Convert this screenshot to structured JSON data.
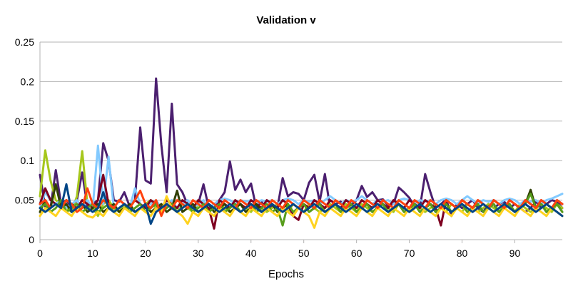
{
  "chart_data": {
    "type": "line",
    "title": "Validation v",
    "xlabel": "Epochs",
    "ylabel": "",
    "xlim": [
      0,
      99
    ],
    "ylim": [
      0,
      0.25
    ],
    "xticks": [
      "0",
      "10",
      "20",
      "30",
      "40",
      "50",
      "60",
      "70",
      "80",
      "90"
    ],
    "yticks": [
      "0",
      "0.05",
      "0.1",
      "0.15",
      "0.2",
      "0.25"
    ],
    "grid": true,
    "legend": "none",
    "series": [
      {
        "color": "#4b1f6f",
        "values": [
          0.082,
          0.042,
          0.04,
          0.088,
          0.045,
          0.05,
          0.04,
          0.05,
          0.085,
          0.042,
          0.045,
          0.05,
          0.122,
          0.1,
          0.05,
          0.048,
          0.06,
          0.042,
          0.05,
          0.142,
          0.075,
          0.071,
          0.204,
          0.12,
          0.06,
          0.172,
          0.07,
          0.06,
          0.044,
          0.04,
          0.045,
          0.07,
          0.04,
          0.04,
          0.05,
          0.06,
          0.099,
          0.063,
          0.076,
          0.06,
          0.071,
          0.04,
          0.048,
          0.037,
          0.042,
          0.04,
          0.078,
          0.055,
          0.06,
          0.058,
          0.05,
          0.072,
          0.082,
          0.048,
          0.083,
          0.04,
          0.045,
          0.048,
          0.04,
          0.044,
          0.05,
          0.068,
          0.054,
          0.06,
          0.05,
          0.051,
          0.043,
          0.045,
          0.066,
          0.06,
          0.053,
          0.042,
          0.04,
          0.083,
          0.06,
          0.04,
          0.045,
          0.051,
          0.03,
          0.045,
          0.04,
          0.045,
          0.05,
          0.04,
          0.035,
          0.045,
          0.04,
          0.045,
          0.048,
          0.04,
          0.045,
          0.04,
          0.035,
          0.04,
          0.048,
          0.04,
          0.045,
          0.05,
          0.048,
          0.04
        ]
      },
      {
        "color": "#a6c71c",
        "values": [
          0.055,
          0.113,
          0.075,
          0.05,
          0.045,
          0.04,
          0.035,
          0.055,
          0.112,
          0.045,
          0.04,
          0.03,
          0.045,
          0.05,
          0.04,
          0.035,
          0.045,
          0.04,
          0.035,
          0.04,
          0.045,
          0.05,
          0.04,
          0.035,
          0.045,
          0.04,
          0.035,
          0.045,
          0.04,
          0.035,
          0.045,
          0.04,
          0.035,
          0.04,
          0.045,
          0.04,
          0.035,
          0.04,
          0.045,
          0.04,
          0.035,
          0.045,
          0.04,
          0.035,
          0.04,
          0.045,
          0.04,
          0.035,
          0.045,
          0.04,
          0.035,
          0.045,
          0.04,
          0.035,
          0.04,
          0.045,
          0.04,
          0.035,
          0.045,
          0.04,
          0.035,
          0.045,
          0.04,
          0.035,
          0.04,
          0.045,
          0.04,
          0.035,
          0.045,
          0.04,
          0.035,
          0.045,
          0.04,
          0.035,
          0.04,
          0.045,
          0.04,
          0.035,
          0.045,
          0.04,
          0.035,
          0.045,
          0.04,
          0.035,
          0.04,
          0.045,
          0.04,
          0.035,
          0.045,
          0.04,
          0.035,
          0.045,
          0.04,
          0.035,
          0.04,
          0.045,
          0.04,
          0.035,
          0.045,
          0.04
        ]
      },
      {
        "color": "#83caff",
        "values": [
          0.04,
          0.06,
          0.05,
          0.045,
          0.05,
          0.04,
          0.045,
          0.05,
          0.04,
          0.05,
          0.04,
          0.119,
          0.045,
          0.105,
          0.04,
          0.05,
          0.045,
          0.04,
          0.065,
          0.045,
          0.04,
          0.045,
          0.05,
          0.04,
          0.045,
          0.05,
          0.04,
          0.045,
          0.05,
          0.04,
          0.045,
          0.05,
          0.04,
          0.045,
          0.05,
          0.052,
          0.05,
          0.045,
          0.05,
          0.048,
          0.05,
          0.045,
          0.05,
          0.048,
          0.05,
          0.045,
          0.05,
          0.052,
          0.05,
          0.045,
          0.05,
          0.048,
          0.05,
          0.045,
          0.05,
          0.055,
          0.05,
          0.045,
          0.05,
          0.048,
          0.05,
          0.055,
          0.05,
          0.045,
          0.05,
          0.048,
          0.05,
          0.045,
          0.05,
          0.052,
          0.05,
          0.045,
          0.05,
          0.048,
          0.05,
          0.045,
          0.05,
          0.052,
          0.05,
          0.045,
          0.05,
          0.055,
          0.05,
          0.045,
          0.05,
          0.048,
          0.05,
          0.045,
          0.05,
          0.052,
          0.05,
          0.045,
          0.05,
          0.048,
          0.05,
          0.045,
          0.05,
          0.052,
          0.055,
          0.058
        ]
      },
      {
        "color": "#7e0021",
        "values": [
          0.045,
          0.065,
          0.05,
          0.045,
          0.04,
          0.05,
          0.045,
          0.04,
          0.05,
          0.045,
          0.04,
          0.05,
          0.082,
          0.045,
          0.04,
          0.05,
          0.045,
          0.04,
          0.05,
          0.045,
          0.04,
          0.05,
          0.045,
          0.04,
          0.05,
          0.045,
          0.04,
          0.05,
          0.045,
          0.04,
          0.05,
          0.045,
          0.04,
          0.014,
          0.05,
          0.045,
          0.04,
          0.05,
          0.045,
          0.04,
          0.05,
          0.045,
          0.04,
          0.05,
          0.045,
          0.04,
          0.05,
          0.045,
          0.03,
          0.025,
          0.045,
          0.04,
          0.05,
          0.045,
          0.04,
          0.05,
          0.045,
          0.04,
          0.05,
          0.045,
          0.04,
          0.05,
          0.045,
          0.04,
          0.05,
          0.045,
          0.04,
          0.05,
          0.045,
          0.04,
          0.05,
          0.045,
          0.04,
          0.05,
          0.045,
          0.04,
          0.018,
          0.05,
          0.045,
          0.04,
          0.05,
          0.045,
          0.04,
          0.05,
          0.045,
          0.04,
          0.05,
          0.045,
          0.04,
          0.05,
          0.045,
          0.04,
          0.05,
          0.045,
          0.04,
          0.05,
          0.045,
          0.04,
          0.05,
          0.045
        ]
      },
      {
        "color": "#314004",
        "values": [
          0.035,
          0.05,
          0.04,
          0.07,
          0.04,
          0.045,
          0.035,
          0.04,
          0.045,
          0.035,
          0.04,
          0.045,
          0.035,
          0.04,
          0.045,
          0.035,
          0.04,
          0.045,
          0.035,
          0.04,
          0.045,
          0.035,
          0.04,
          0.045,
          0.035,
          0.04,
          0.062,
          0.035,
          0.04,
          0.045,
          0.035,
          0.04,
          0.045,
          0.035,
          0.04,
          0.045,
          0.035,
          0.04,
          0.045,
          0.035,
          0.04,
          0.045,
          0.035,
          0.04,
          0.045,
          0.035,
          0.04,
          0.045,
          0.035,
          0.04,
          0.045,
          0.035,
          0.04,
          0.045,
          0.035,
          0.04,
          0.045,
          0.035,
          0.04,
          0.045,
          0.035,
          0.04,
          0.045,
          0.035,
          0.04,
          0.045,
          0.035,
          0.04,
          0.045,
          0.035,
          0.04,
          0.045,
          0.035,
          0.04,
          0.045,
          0.035,
          0.04,
          0.045,
          0.035,
          0.04,
          0.045,
          0.035,
          0.04,
          0.045,
          0.035,
          0.04,
          0.045,
          0.035,
          0.04,
          0.045,
          0.035,
          0.04,
          0.045,
          0.063,
          0.04,
          0.045,
          0.035,
          0.04,
          0.045,
          0.035
        ]
      },
      {
        "color": "#579d1c",
        "values": [
          0.04,
          0.045,
          0.035,
          0.04,
          0.05,
          0.035,
          0.04,
          0.045,
          0.035,
          0.04,
          0.045,
          0.035,
          0.04,
          0.045,
          0.035,
          0.04,
          0.045,
          0.035,
          0.04,
          0.045,
          0.035,
          0.04,
          0.045,
          0.035,
          0.04,
          0.045,
          0.035,
          0.04,
          0.045,
          0.035,
          0.04,
          0.045,
          0.035,
          0.04,
          0.045,
          0.035,
          0.04,
          0.045,
          0.035,
          0.04,
          0.045,
          0.035,
          0.04,
          0.045,
          0.035,
          0.04,
          0.018,
          0.045,
          0.035,
          0.04,
          0.045,
          0.035,
          0.04,
          0.045,
          0.035,
          0.04,
          0.045,
          0.035,
          0.04,
          0.045,
          0.035,
          0.04,
          0.045,
          0.035,
          0.04,
          0.045,
          0.035,
          0.04,
          0.045,
          0.035,
          0.04,
          0.045,
          0.035,
          0.04,
          0.045,
          0.035,
          0.04,
          0.045,
          0.035,
          0.04,
          0.045,
          0.035,
          0.04,
          0.045,
          0.035,
          0.04,
          0.045,
          0.035,
          0.04,
          0.045,
          0.035,
          0.04,
          0.045,
          0.058,
          0.04,
          0.045,
          0.035,
          0.04,
          0.045,
          0.035
        ]
      },
      {
        "color": "#ffd320",
        "values": [
          0.03,
          0.04,
          0.035,
          0.03,
          0.04,
          0.035,
          0.03,
          0.04,
          0.035,
          0.03,
          0.028,
          0.035,
          0.03,
          0.04,
          0.035,
          0.03,
          0.04,
          0.035,
          0.03,
          0.04,
          0.035,
          0.03,
          0.04,
          0.035,
          0.055,
          0.04,
          0.035,
          0.03,
          0.02,
          0.035,
          0.03,
          0.04,
          0.035,
          0.03,
          0.04,
          0.035,
          0.03,
          0.04,
          0.035,
          0.03,
          0.04,
          0.035,
          0.03,
          0.04,
          0.035,
          0.03,
          0.04,
          0.035,
          0.03,
          0.04,
          0.035,
          0.03,
          0.015,
          0.035,
          0.03,
          0.04,
          0.035,
          0.03,
          0.04,
          0.035,
          0.03,
          0.04,
          0.035,
          0.03,
          0.04,
          0.035,
          0.03,
          0.04,
          0.035,
          0.03,
          0.04,
          0.035,
          0.03,
          0.04,
          0.035,
          0.03,
          0.04,
          0.035,
          0.03,
          0.04,
          0.035,
          0.03,
          0.04,
          0.035,
          0.03,
          0.04,
          0.035,
          0.03,
          0.04,
          0.035,
          0.03,
          0.04,
          0.035,
          0.03,
          0.04,
          0.035,
          0.03,
          0.04,
          0.035,
          0.03
        ]
      },
      {
        "color": "#ff420e",
        "values": [
          0.045,
          0.05,
          0.04,
          0.045,
          0.04,
          0.05,
          0.045,
          0.035,
          0.04,
          0.065,
          0.045,
          0.04,
          0.05,
          0.045,
          0.04,
          0.05,
          0.045,
          0.04,
          0.05,
          0.062,
          0.045,
          0.04,
          0.05,
          0.03,
          0.045,
          0.04,
          0.05,
          0.045,
          0.04,
          0.05,
          0.045,
          0.04,
          0.05,
          0.045,
          0.04,
          0.05,
          0.045,
          0.04,
          0.05,
          0.045,
          0.04,
          0.05,
          0.045,
          0.04,
          0.05,
          0.045,
          0.04,
          0.05,
          0.045,
          0.04,
          0.05,
          0.045,
          0.04,
          0.05,
          0.045,
          0.04,
          0.05,
          0.045,
          0.04,
          0.05,
          0.045,
          0.04,
          0.05,
          0.045,
          0.04,
          0.05,
          0.045,
          0.04,
          0.05,
          0.045,
          0.04,
          0.05,
          0.045,
          0.04,
          0.05,
          0.045,
          0.04,
          0.05,
          0.045,
          0.04,
          0.05,
          0.045,
          0.04,
          0.05,
          0.045,
          0.04,
          0.05,
          0.045,
          0.04,
          0.05,
          0.045,
          0.04,
          0.05,
          0.045,
          0.04,
          0.05,
          0.045,
          0.04,
          0.05,
          0.045
        ]
      },
      {
        "color": "#004586",
        "values": [
          0.04,
          0.035,
          0.04,
          0.045,
          0.04,
          0.07,
          0.035,
          0.04,
          0.045,
          0.04,
          0.035,
          0.04,
          0.06,
          0.04,
          0.035,
          0.04,
          0.045,
          0.04,
          0.035,
          0.04,
          0.045,
          0.02,
          0.035,
          0.04,
          0.045,
          0.04,
          0.035,
          0.04,
          0.045,
          0.04,
          0.035,
          0.04,
          0.045,
          0.04,
          0.035,
          0.04,
          0.045,
          0.04,
          0.035,
          0.04,
          0.045,
          0.04,
          0.035,
          0.04,
          0.045,
          0.04,
          0.035,
          0.04,
          0.045,
          0.04,
          0.035,
          0.04,
          0.045,
          0.04,
          0.035,
          0.04,
          0.045,
          0.04,
          0.035,
          0.04,
          0.045,
          0.04,
          0.035,
          0.04,
          0.045,
          0.04,
          0.035,
          0.04,
          0.045,
          0.04,
          0.035,
          0.04,
          0.045,
          0.04,
          0.035,
          0.04,
          0.045,
          0.04,
          0.035,
          0.04,
          0.045,
          0.04,
          0.035,
          0.04,
          0.045,
          0.04,
          0.035,
          0.04,
          0.045,
          0.04,
          0.035,
          0.04,
          0.045,
          0.04,
          0.035,
          0.04,
          0.045,
          0.04,
          0.035,
          0.03
        ]
      }
    ]
  }
}
